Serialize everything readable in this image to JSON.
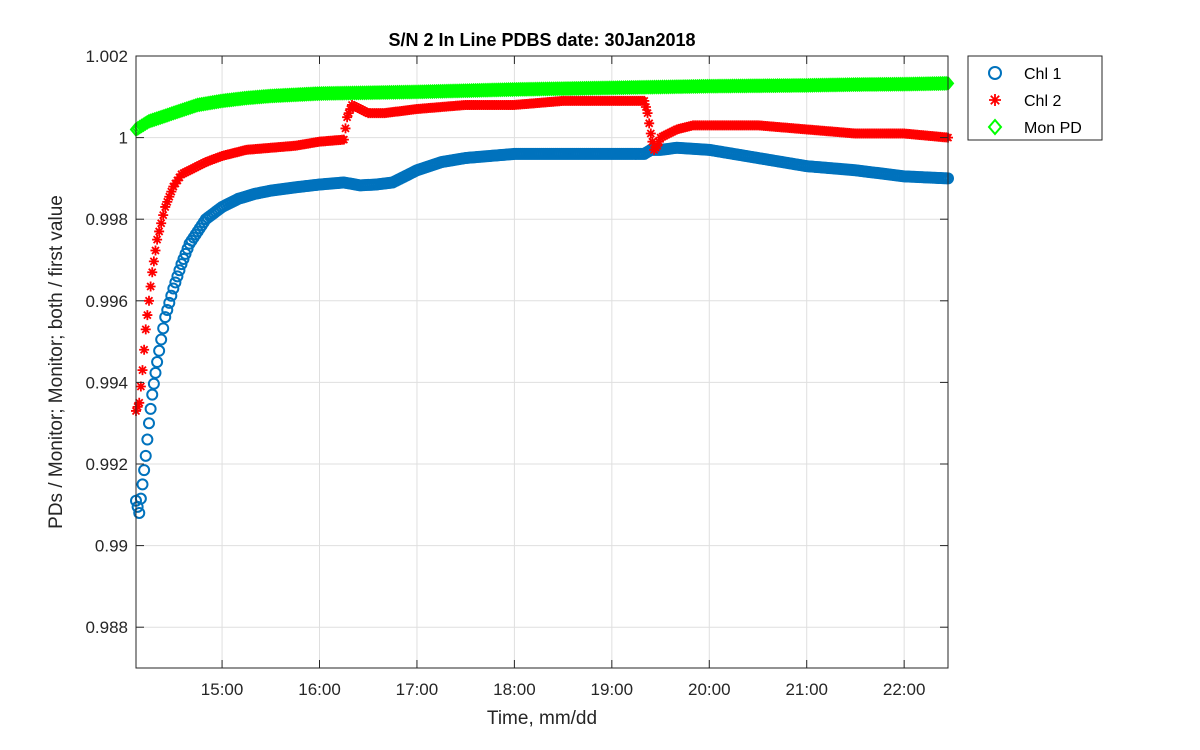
{
  "chart_data": {
    "type": "scatter",
    "title": "S/N 2 In Line PDBS date: 30Jan2018",
    "xlabel": "Time, mm/dd",
    "ylabel": "PDs / Monitor; Monitor; both / first value",
    "xlim": [
      "14:07",
      "22:27"
    ],
    "ylim": [
      0.987,
      1.002
    ],
    "x_ticks": [
      "15:00",
      "16:00",
      "17:00",
      "18:00",
      "19:00",
      "20:00",
      "21:00",
      "22:00"
    ],
    "y_ticks": [
      "0.988",
      "0.99",
      "0.992",
      "0.994",
      "0.996",
      "0.998",
      "1",
      "1.002"
    ],
    "grid": true,
    "legend_position": "outside-top-right",
    "series": [
      {
        "name": "Chl 1",
        "marker": "circle",
        "color": "#0072BD",
        "x": [
          "14:07",
          "14:09",
          "14:11",
          "14:13",
          "14:15",
          "14:17",
          "14:20",
          "14:25",
          "14:30",
          "14:35",
          "14:40",
          "14:45",
          "14:50",
          "15:00",
          "15:10",
          "15:20",
          "15:30",
          "15:45",
          "16:00",
          "16:15",
          "16:25",
          "16:35",
          "16:45",
          "17:00",
          "17:15",
          "17:30",
          "17:45",
          "18:00",
          "18:30",
          "19:00",
          "19:20",
          "19:24",
          "19:30",
          "19:40",
          "20:00",
          "20:30",
          "21:00",
          "21:30",
          "22:00",
          "22:27"
        ],
        "y": [
          0.9911,
          0.9908,
          0.9915,
          0.9922,
          0.993,
          0.9937,
          0.9945,
          0.9956,
          0.9963,
          0.9969,
          0.9974,
          0.9977,
          0.998,
          0.9983,
          0.9985,
          0.99862,
          0.9987,
          0.99878,
          0.99885,
          0.9989,
          0.99883,
          0.99885,
          0.9989,
          0.9992,
          0.9994,
          0.9995,
          0.99955,
          0.9996,
          0.9996,
          0.9996,
          0.9996,
          0.9997,
          0.9997,
          0.99975,
          0.9997,
          0.9995,
          0.9993,
          0.9992,
          0.99905,
          0.999
        ]
      },
      {
        "name": "Chl 2",
        "marker": "asterisk",
        "color": "#FF0000",
        "x": [
          "14:07",
          "14:09",
          "14:11",
          "14:13",
          "14:15",
          "14:17",
          "14:20",
          "14:25",
          "14:30",
          "14:35",
          "14:40",
          "14:45",
          "14:50",
          "15:00",
          "15:15",
          "15:30",
          "15:45",
          "16:00",
          "16:15",
          "16:17",
          "16:20",
          "16:25",
          "16:30",
          "16:40",
          "17:00",
          "17:30",
          "18:00",
          "18:30",
          "19:00",
          "19:20",
          "19:22",
          "19:24",
          "19:26",
          "19:28",
          "19:30",
          "19:40",
          "19:50",
          "20:00",
          "20:30",
          "21:00",
          "21:30",
          "22:00",
          "22:27"
        ],
        "y": [
          0.9933,
          0.9935,
          0.9943,
          0.9953,
          0.996,
          0.9967,
          0.9975,
          0.9983,
          0.9988,
          0.9991,
          0.9992,
          0.9993,
          0.9994,
          0.99955,
          0.9997,
          0.99975,
          0.9998,
          0.9999,
          0.99995,
          1.0005,
          1.0008,
          1.0007,
          1.0006,
          1.0006,
          1.0007,
          1.0008,
          1.0008,
          1.0009,
          1.0009,
          1.0009,
          1.0006,
          1.0001,
          0.9997,
          0.9998,
          1.0,
          1.0002,
          1.0003,
          1.0003,
          1.0003,
          1.0002,
          1.0001,
          1.0001,
          1.0
        ]
      },
      {
        "name": "Mon PD",
        "marker": "diamond",
        "color": "#00FF00",
        "x": [
          "14:07",
          "14:15",
          "14:30",
          "14:45",
          "15:00",
          "15:15",
          "15:30",
          "15:45",
          "16:00",
          "16:30",
          "17:00",
          "17:30",
          "18:00",
          "18:30",
          "19:00",
          "19:30",
          "20:00",
          "20:30",
          "21:00",
          "21:30",
          "22:00",
          "22:27"
        ],
        "y": [
          1.0002,
          1.0004,
          1.0006,
          1.0008,
          1.0009,
          1.00097,
          1.00102,
          1.00105,
          1.00108,
          1.0011,
          1.00112,
          1.00115,
          1.00118,
          1.0012,
          1.00122,
          1.00124,
          1.00126,
          1.00127,
          1.00128,
          1.0013,
          1.00131,
          1.00133
        ]
      }
    ]
  }
}
